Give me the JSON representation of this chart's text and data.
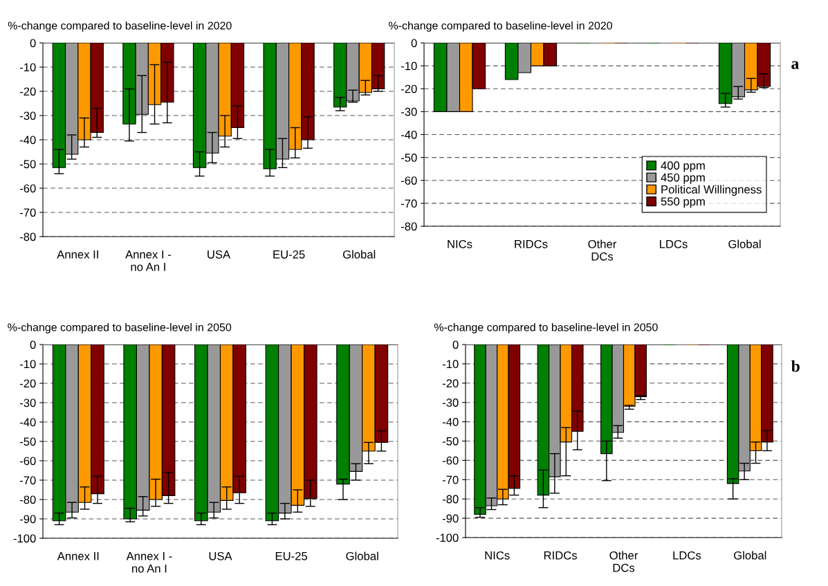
{
  "chart_data": [
    {
      "type": "bar",
      "title": "%-change compared to baseline-level in 2020",
      "categories": [
        "Annex II",
        "Annex I -\nno An I",
        "USA",
        "EU-25",
        "Global"
      ],
      "ylim": [
        -80,
        0
      ],
      "yticks": [
        -80,
        -70,
        -60,
        -50,
        -40,
        -30,
        -20,
        -10,
        0
      ],
      "grid": "y",
      "legend": false,
      "series": [
        {
          "color": "#008000",
          "values": [
            -51.5,
            -33.5,
            -51.5,
            -52,
            -26.5
          ],
          "errors": [
            [
              -54,
              -44
            ],
            [
              -40.5,
              -19
            ],
            [
              -55,
              -45
            ],
            [
              -55,
              -44
            ],
            [
              -28,
              -22.5
            ]
          ]
        },
        {
          "color": "#999999",
          "values": [
            -46,
            -29.5,
            -45.5,
            -48,
            -24
          ],
          "errors": [
            [
              -48,
              -38
            ],
            [
              -37,
              -13.5
            ],
            [
              -49.5,
              -37
            ],
            [
              -51.5,
              -39.5
            ],
            [
              -24.5,
              -19.5
            ]
          ]
        },
        {
          "color": "#ff9900",
          "values": [
            -40,
            -25.5,
            -38.5,
            -44,
            -20.5
          ],
          "errors": [
            [
              -43,
              -31
            ],
            [
              -33.5,
              -9
            ],
            [
              -43,
              -30
            ],
            [
              -47.5,
              -35
            ],
            [
              -21.5,
              -15.5
            ]
          ]
        },
        {
          "color": "#800000",
          "values": [
            -37,
            -24.5,
            -35,
            -40,
            -19
          ],
          "errors": [
            [
              -39,
              -27
            ],
            [
              -33,
              -8
            ],
            [
              -39.5,
              -26
            ],
            [
              -43.5,
              -30.5
            ],
            [
              -20,
              -13.5
            ]
          ]
        }
      ]
    },
    {
      "type": "bar",
      "title": "%-change compared to baseline-level in 2020",
      "categories": [
        "NICs",
        "RIDCs",
        "Other\nDCs",
        "LDCs",
        "Global"
      ],
      "ylim": [
        -80,
        0
      ],
      "yticks": [
        -80,
        -70,
        -60,
        -50,
        -40,
        -30,
        -20,
        -10,
        0
      ],
      "grid": "y",
      "legend": "bottom right",
      "annotations": [
        "a"
      ],
      "series": [
        {
          "name": "400 ppm",
          "color": "#008000",
          "values": [
            -30,
            -16,
            0,
            0,
            -26.5
          ],
          "errors": [
            null,
            null,
            null,
            null,
            [
              -28,
              -22
            ]
          ]
        },
        {
          "name": "450 ppm",
          "color": "#999999",
          "values": [
            -30,
            -13,
            0,
            0,
            -23.5
          ],
          "errors": [
            null,
            null,
            null,
            null,
            [
              -24.5,
              -19
            ]
          ]
        },
        {
          "name": "Political Willingness",
          "color": "#ff9900",
          "values": [
            -30,
            -10,
            0,
            0,
            -20.5
          ],
          "errors": [
            null,
            null,
            null,
            null,
            [
              -21.5,
              -15.5
            ]
          ]
        },
        {
          "name": "550 ppm",
          "color": "#800000",
          "values": [
            -20,
            -10,
            0,
            0,
            -19
          ],
          "errors": [
            null,
            null,
            null,
            null,
            [
              -19.5,
              -13.5
            ]
          ]
        }
      ]
    },
    {
      "type": "bar",
      "title": "%-change compared to baseline-level in 2050",
      "categories": [
        "Annex II",
        "Annex I -\nno An I",
        "USA",
        "EU-25",
        "Global"
      ],
      "ylim": [
        -100,
        0
      ],
      "yticks": [
        -100,
        -90,
        -80,
        -70,
        -60,
        -50,
        -40,
        -30,
        -20,
        -10,
        0
      ],
      "grid": "y",
      "legend": false,
      "series": [
        {
          "color": "#008000",
          "values": [
            -91,
            -90,
            -91,
            -91,
            -72
          ],
          "errors": [
            [
              -93,
              -87
            ],
            [
              -91.5,
              -84.5
            ],
            [
              -93,
              -87
            ],
            [
              -93,
              -87
            ],
            [
              -80,
              -69.5
            ]
          ]
        },
        {
          "color": "#999999",
          "values": [
            -86.5,
            -85.5,
            -86.5,
            -87,
            -65.5
          ],
          "errors": [
            [
              -89.5,
              -81.5
            ],
            [
              -88.5,
              -78.5
            ],
            [
              -89.5,
              -81.5
            ],
            [
              -90,
              -82
            ],
            [
              -70,
              -61.5
            ]
          ]
        },
        {
          "color": "#ff9900",
          "values": [
            -81.5,
            -80,
            -80.5,
            -83,
            -55
          ],
          "errors": [
            [
              -85,
              -73.5
            ],
            [
              -83.5,
              -69.5
            ],
            [
              -85,
              -73.5
            ],
            [
              -86.5,
              -75
            ],
            [
              -61.5,
              -50.5
            ]
          ]
        },
        {
          "color": "#800000",
          "values": [
            -77,
            -78,
            -76.5,
            -79.5,
            -50.5
          ],
          "errors": [
            [
              -82,
              -68
            ],
            [
              -82,
              -66
            ],
            [
              -82,
              -68
            ],
            [
              -83.5,
              -70
            ],
            [
              -55,
              -44.5
            ]
          ]
        }
      ]
    },
    {
      "type": "bar",
      "title": "%-change compared to baseline-level in 2050",
      "categories": [
        "NICs",
        "RIDCs",
        "Other\nDCs",
        "LDCs",
        "Global"
      ],
      "ylim": [
        -100,
        0
      ],
      "yticks": [
        -100,
        -90,
        -80,
        -70,
        -60,
        -50,
        -40,
        -30,
        -20,
        -10,
        0
      ],
      "grid": "y",
      "legend": false,
      "annotations": [
        "b"
      ],
      "series": [
        {
          "color": "#008000",
          "values": [
            -88,
            -78,
            -56.5,
            0,
            -72
          ],
          "errors": [
            [
              -89.5,
              -84.5
            ],
            [
              -84.5,
              -65
            ],
            [
              -70.5,
              -50
            ],
            null,
            [
              -80,
              -69.5
            ]
          ]
        },
        {
          "color": "#999999",
          "values": [
            -83.5,
            -68.5,
            -45.5,
            0,
            -65.5
          ],
          "errors": [
            [
              -85.5,
              -79.5
            ],
            [
              -77,
              -56.5
            ],
            [
              -48.5,
              -42
            ],
            null,
            [
              -70,
              -61.5
            ]
          ]
        },
        {
          "color": "#ff9900",
          "values": [
            -80,
            -50.5,
            -32,
            0,
            -55
          ],
          "errors": [
            [
              -83,
              -75
            ],
            [
              -68,
              -43
            ],
            [
              -33.5,
              -31.5
            ],
            null,
            [
              -61.5,
              -50.5
            ]
          ]
        },
        {
          "color": "#800000",
          "values": [
            -74.5,
            -45,
            -27,
            0,
            -50.5
          ],
          "errors": [
            [
              -78,
              -68
            ],
            [
              -54.5,
              -34.5
            ],
            [
              -28.5,
              -26.5
            ],
            null,
            [
              -55,
              -44.5
            ]
          ]
        }
      ]
    }
  ]
}
